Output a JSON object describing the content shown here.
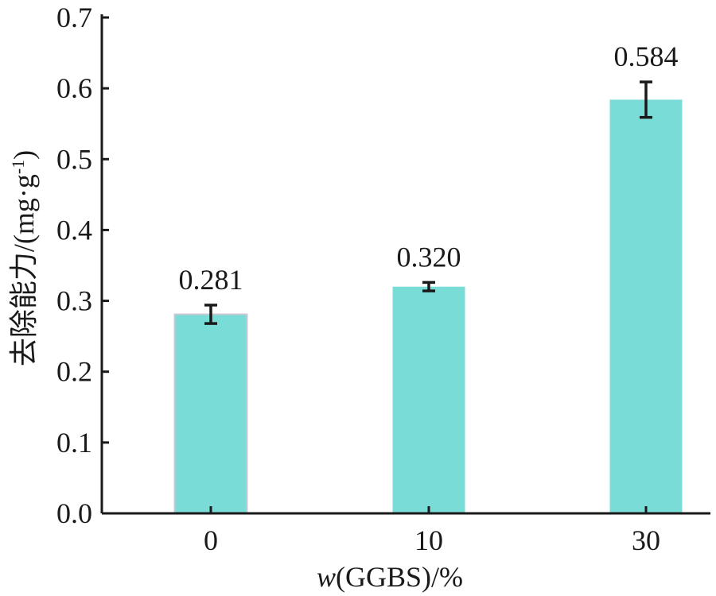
{
  "chart_data": {
    "type": "bar",
    "categories": [
      "0",
      "10",
      "30"
    ],
    "values": [
      0.281,
      0.32,
      0.584
    ],
    "errors": [
      0.013,
      0.006,
      0.025
    ],
    "value_labels": [
      "0.281",
      "0.320",
      "0.584"
    ],
    "ylim": [
      0.0,
      0.7
    ],
    "yticks": [
      "0.0",
      "0.1",
      "0.2",
      "0.3",
      "0.4",
      "0.5",
      "0.6",
      "0.7"
    ],
    "ylabel_main": "去除能力/(mg·g",
    "ylabel_sup": "-1",
    "ylabel_close": ")",
    "xlabel_italic": "w",
    "xlabel_rest": "(GGBS)/%",
    "bar_color": "#7adcd6",
    "grid": false
  }
}
